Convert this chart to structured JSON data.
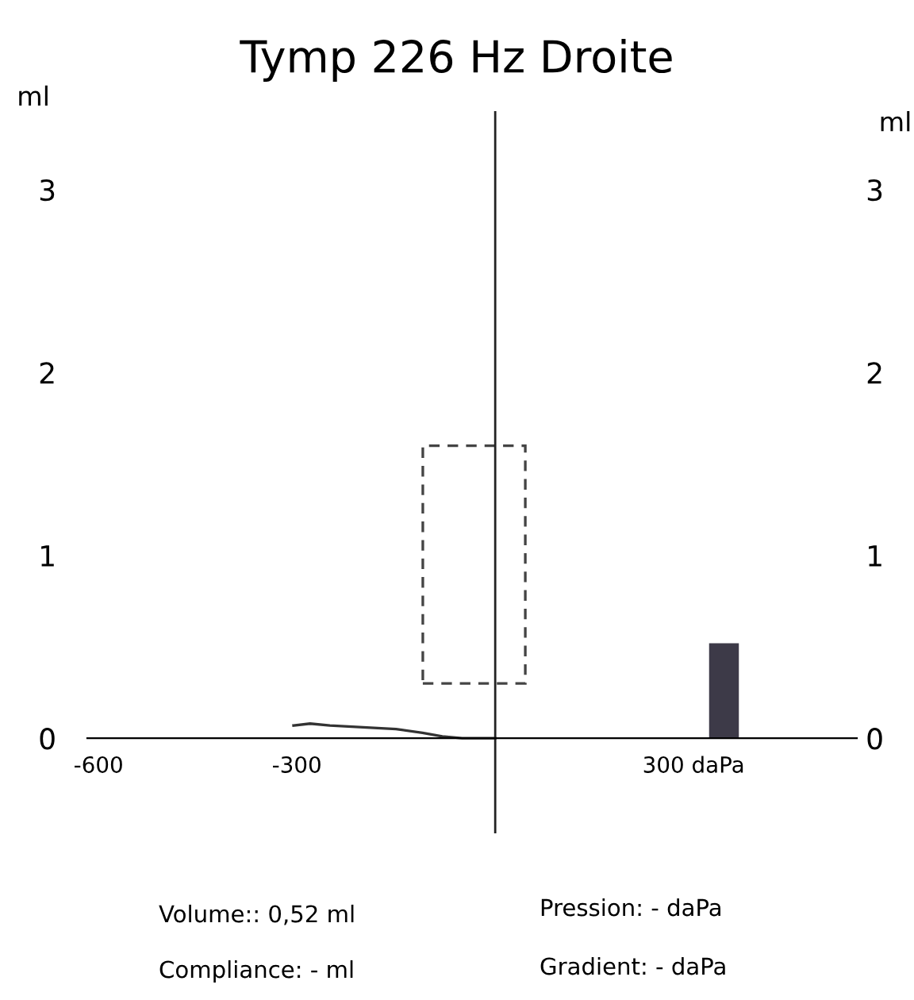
{
  "chart_data": {
    "type": "line",
    "title": "Tymp 226 Hz Droite",
    "ylabel": "ml",
    "y2label": "ml",
    "xlim": [
      -617,
      547
    ],
    "ylim": [
      -0.52,
      3.43
    ],
    "y2lim": [
      -0.52,
      3.43
    ],
    "xticks": [
      -600,
      -300,
      {
        "value": 300,
        "label": "300 daPa"
      }
    ],
    "yticks": [
      0,
      1,
      2,
      3
    ],
    "y2ticks": [
      0,
      1,
      2,
      3
    ],
    "grid": false,
    "marker": "none",
    "ref_lines": [
      {
        "axis": "x",
        "value": 0
      }
    ],
    "series": [
      {
        "color": "#333333",
        "line_style": "solid",
        "x": [
          -305,
          -280,
          -250,
          -200,
          -150,
          -110,
          -80,
          -50,
          0
        ],
        "values": [
          0.07,
          0.08,
          0.07,
          0.06,
          0.05,
          0.03,
          0.01,
          0.0,
          0.0
        ]
      },
      {
        "type": "bar",
        "color": "#444444",
        "line_style": "dashed",
        "x": [
          -32
        ],
        "base": [
          0.3
        ],
        "values": [
          1.3
        ]
      },
      {
        "type": "bar",
        "color": "#3d3a48",
        "x": [
          346
        ],
        "values": [
          0.52
        ]
      }
    ],
    "annotations": [
      "Volume:: 0,52 ml",
      "Pression: - daPa",
      "Compliance: - ml",
      "Gradient: - daPa"
    ]
  }
}
